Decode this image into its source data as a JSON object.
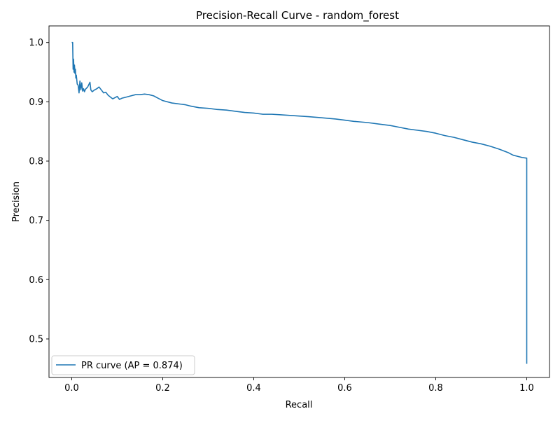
{
  "chart_data": {
    "type": "line",
    "title": "Precision-Recall Curve - random_forest",
    "xlabel": "Recall",
    "ylabel": "Precision",
    "xlim": [
      -0.05,
      1.05
    ],
    "ylim": [
      0.435,
      1.028
    ],
    "grid": false,
    "legend_position": "lower-left",
    "x_ticks": [
      {
        "value": 0.0,
        "label": "0.0"
      },
      {
        "value": 0.2,
        "label": "0.2"
      },
      {
        "value": 0.4,
        "label": "0.4"
      },
      {
        "value": 0.6,
        "label": "0.6"
      },
      {
        "value": 0.8,
        "label": "0.8"
      },
      {
        "value": 1.0,
        "label": "1.0"
      }
    ],
    "y_ticks": [
      {
        "value": 0.5,
        "label": "0.5"
      },
      {
        "value": 0.6,
        "label": "0.6"
      },
      {
        "value": 0.7,
        "label": "0.7"
      },
      {
        "value": 0.8,
        "label": "0.8"
      },
      {
        "value": 0.9,
        "label": "0.9"
      },
      {
        "value": 1.0,
        "label": "1.0"
      }
    ],
    "series": [
      {
        "name": "PR curve (AP = 0.874)",
        "color": "#1f77b4",
        "x": [
          0.0,
          0.002,
          0.003,
          0.004,
          0.005,
          0.006,
          0.007,
          0.008,
          0.009,
          0.01,
          0.012,
          0.014,
          0.016,
          0.018,
          0.02,
          0.022,
          0.024,
          0.026,
          0.028,
          0.03,
          0.035,
          0.04,
          0.042,
          0.045,
          0.05,
          0.055,
          0.06,
          0.065,
          0.07,
          0.075,
          0.08,
          0.085,
          0.09,
          0.095,
          0.1,
          0.105,
          0.11,
          0.12,
          0.13,
          0.14,
          0.15,
          0.16,
          0.17,
          0.18,
          0.19,
          0.2,
          0.22,
          0.24,
          0.25,
          0.26,
          0.28,
          0.3,
          0.32,
          0.34,
          0.36,
          0.38,
          0.4,
          0.42,
          0.44,
          0.46,
          0.48,
          0.5,
          0.52,
          0.55,
          0.58,
          0.6,
          0.62,
          0.65,
          0.68,
          0.7,
          0.72,
          0.74,
          0.76,
          0.78,
          0.8,
          0.82,
          0.84,
          0.86,
          0.88,
          0.9,
          0.92,
          0.94,
          0.96,
          0.97,
          0.98,
          0.99,
          1.0,
          1.0
        ],
        "y": [
          1.0,
          1.0,
          0.955,
          0.972,
          0.95,
          0.962,
          0.948,
          0.955,
          0.94,
          0.945,
          0.93,
          0.928,
          0.915,
          0.935,
          0.92,
          0.932,
          0.918,
          0.922,
          0.917,
          0.921,
          0.925,
          0.933,
          0.92,
          0.917,
          0.92,
          0.922,
          0.925,
          0.92,
          0.915,
          0.916,
          0.911,
          0.908,
          0.905,
          0.907,
          0.909,
          0.904,
          0.906,
          0.908,
          0.91,
          0.912,
          0.912,
          0.913,
          0.912,
          0.91,
          0.906,
          0.902,
          0.898,
          0.896,
          0.895,
          0.893,
          0.89,
          0.889,
          0.887,
          0.886,
          0.884,
          0.882,
          0.881,
          0.879,
          0.879,
          0.878,
          0.877,
          0.876,
          0.875,
          0.873,
          0.871,
          0.869,
          0.867,
          0.865,
          0.862,
          0.86,
          0.857,
          0.854,
          0.852,
          0.85,
          0.847,
          0.843,
          0.84,
          0.836,
          0.832,
          0.829,
          0.825,
          0.82,
          0.814,
          0.81,
          0.808,
          0.806,
          0.805,
          0.458
        ]
      }
    ]
  }
}
